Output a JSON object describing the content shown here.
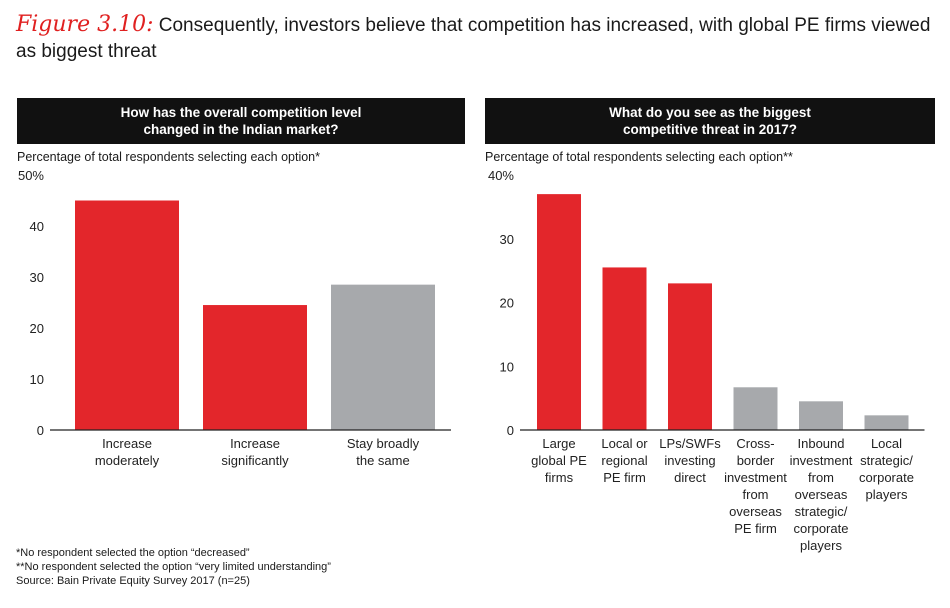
{
  "title": {
    "figure_label": "Figure 3.10:",
    "text": "Consequently, investors believe that competition has increased, with global PE firms viewed as biggest threat"
  },
  "colors": {
    "red": "#e3262b",
    "gray": "#a7a9ac",
    "axis": "#222222"
  },
  "chart_data": [
    {
      "type": "bar",
      "header": "How has the overall competition level changed in the Indian market?",
      "subtitle": "Percentage of total respondents selecting each option*",
      "ylim": [
        0,
        50
      ],
      "ytick_labels": [
        "0",
        "10",
        "20",
        "30",
        "40",
        "50%"
      ],
      "categories": [
        [
          "Increase",
          "moderately"
        ],
        [
          "Increase",
          "significantly"
        ],
        [
          "Stay broadly",
          "the same"
        ]
      ],
      "values": [
        45,
        24.5,
        28.5
      ],
      "bar_colors": [
        "red",
        "red",
        "gray"
      ]
    },
    {
      "type": "bar",
      "header": "What do you see as the biggest competitive threat in 2017?",
      "subtitle": "Percentage of total respondents selecting each option**",
      "ylim": [
        0,
        40
      ],
      "ytick_labels": [
        "0",
        "10",
        "20",
        "30",
        "40%"
      ],
      "categories": [
        [
          "Large",
          "global PE",
          "firms"
        ],
        [
          "Local or",
          "regional",
          "PE firm"
        ],
        [
          "LPs/SWFs",
          "investing",
          "direct"
        ],
        [
          "Cross-",
          "border",
          "investment",
          "from",
          "overseas",
          "PE firm"
        ],
        [
          "Inbound",
          "investment",
          "from",
          "overseas",
          "strategic/",
          "corporate",
          "players"
        ],
        [
          "Local",
          "strategic/",
          "corporate",
          "players"
        ]
      ],
      "values": [
        37,
        25.5,
        23,
        6.7,
        4.5,
        2.3
      ],
      "bar_colors": [
        "red",
        "red",
        "red",
        "gray",
        "gray",
        "gray"
      ]
    }
  ],
  "footnotes": [
    "*No respondent selected the option “decreased”",
    "**No respondent selected the option “very limited understanding”",
    "Source: Bain Private Equity Survey 2017 (n=25)"
  ]
}
